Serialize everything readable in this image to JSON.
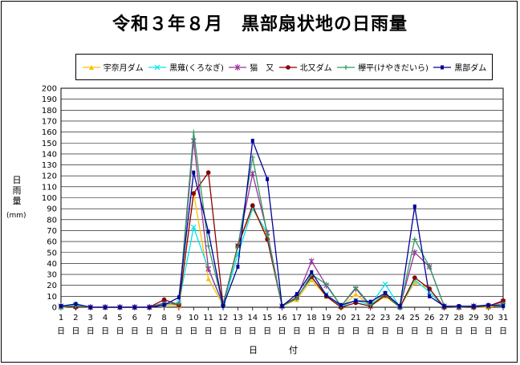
{
  "chart_data": {
    "type": "line",
    "title": "令和３年８月　黒部扇状地の日雨量",
    "ylabel": "日雨量",
    "yunit": "(mm)",
    "xlabel": "日　付",
    "ylim": [
      0,
      200
    ],
    "ytick_step": 10,
    "grid": true,
    "legend_position": "top",
    "x": [
      1,
      2,
      3,
      4,
      5,
      6,
      7,
      8,
      9,
      10,
      11,
      12,
      13,
      14,
      15,
      16,
      17,
      18,
      19,
      20,
      21,
      22,
      23,
      24,
      25,
      26,
      27,
      28,
      29,
      30,
      31
    ],
    "x_tick_suffix": "日",
    "series": [
      {
        "name": "宇奈月ダム",
        "color": "#ffc000",
        "marker": "triangle",
        "values": [
          0,
          1,
          0,
          0,
          0,
          0,
          0,
          2,
          1,
          104,
          26,
          2,
          57,
          90,
          65,
          1,
          7,
          25,
          10,
          0,
          12,
          1,
          10,
          0,
          23,
          17,
          0,
          0,
          0,
          0,
          2
        ]
      },
      {
        "name": "黒薙(くろなぎ)",
        "color": "#00e5ee",
        "marker": "x",
        "values": [
          0,
          2,
          0,
          0,
          0,
          0,
          0,
          3,
          4,
          73,
          35,
          2,
          48,
          90,
          68,
          1,
          9,
          27,
          12,
          1,
          6,
          2,
          21,
          0,
          25,
          14,
          0,
          0,
          0,
          1,
          3
        ]
      },
      {
        "name": "猫　又",
        "color": "#993399",
        "marker": "star",
        "values": [
          1,
          1,
          0,
          0,
          0,
          0,
          0,
          4,
          2,
          152,
          35,
          3,
          56,
          122,
          68,
          1,
          9,
          42,
          20,
          1,
          17,
          1,
          12,
          1,
          50,
          37,
          1,
          0,
          1,
          1,
          5
        ]
      },
      {
        "name": "北又ダム",
        "color": "#8b0000",
        "marker": "circle",
        "values": [
          1,
          0,
          0,
          0,
          0,
          0,
          0,
          7,
          2,
          104,
          123,
          2,
          56,
          93,
          62,
          1,
          9,
          28,
          10,
          0,
          4,
          1,
          11,
          0,
          27,
          17,
          0,
          0,
          0,
          1,
          6
        ]
      },
      {
        "name": "欅平(けやきだいら)",
        "color": "#339966",
        "marker": "plus",
        "values": [
          1,
          1,
          0,
          0,
          0,
          0,
          0,
          3,
          3,
          160,
          56,
          2,
          55,
          137,
          66,
          1,
          8,
          30,
          21,
          1,
          18,
          2,
          12,
          0,
          62,
          37,
          1,
          0,
          1,
          1,
          3
        ]
      },
      {
        "name": "黒部ダム",
        "color": "#000099",
        "marker": "square",
        "values": [
          1,
          3,
          0,
          0,
          0,
          0,
          0,
          2,
          9,
          123,
          69,
          1,
          37,
          152,
          117,
          1,
          12,
          32,
          11,
          2,
          6,
          5,
          13,
          1,
          92,
          10,
          1,
          1,
          1,
          2,
          1
        ]
      }
    ]
  }
}
